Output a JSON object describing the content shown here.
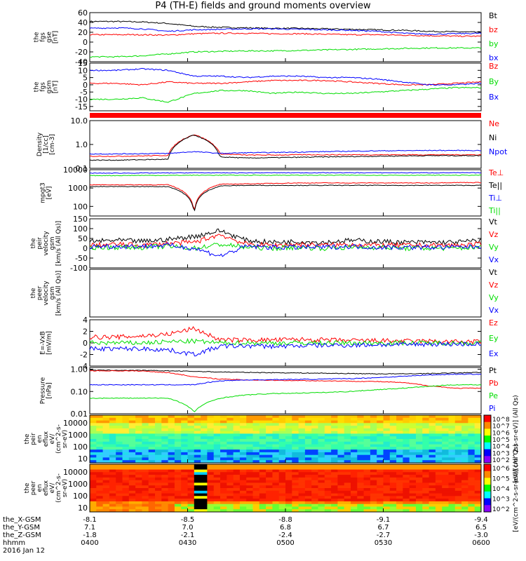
{
  "title": "P4 (TH-E) fields and ground moments overview",
  "colors": {
    "black": "#000000",
    "red": "#ff0000",
    "green": "#00dd00",
    "blue": "#0000ff"
  },
  "chart_data": [
    {
      "type": "line",
      "panel": "fgs_gse",
      "ylabel": [
        "the",
        "fgs",
        "gse",
        "[nT]"
      ],
      "ylim": [
        -40,
        60
      ],
      "yticks": [
        60,
        40,
        20,
        0,
        -20,
        -40
      ],
      "series": [
        {
          "name": "Bt",
          "color": "#000000",
          "values": [
            42,
            42,
            41,
            38,
            32,
            30,
            29,
            28,
            28,
            27,
            26,
            25,
            24,
            22,
            21,
            20
          ]
        },
        {
          "name": "bz",
          "color": "#ff0000",
          "values": [
            15,
            15,
            15,
            14,
            17,
            18,
            18,
            17,
            17,
            16,
            15,
            15,
            14,
            13,
            12,
            12
          ]
        },
        {
          "name": "by",
          "color": "#00dd00",
          "values": [
            -30,
            -30,
            -28,
            -24,
            -20,
            -19,
            -18,
            -18,
            -17,
            -16,
            -15,
            -14,
            -13,
            -12,
            -12,
            -12
          ]
        },
        {
          "name": "bx",
          "color": "#0000ff",
          "values": [
            28,
            29,
            27,
            22,
            25,
            26,
            27,
            27,
            26,
            25,
            24,
            22,
            18,
            16,
            17,
            18
          ]
        }
      ]
    },
    {
      "type": "line",
      "panel": "fgs_gsm",
      "ylabel": [
        "the",
        "fgs",
        "gsm",
        "[nT]"
      ],
      "ylim": [
        -18,
        15
      ],
      "yticks": [
        15,
        10,
        5,
        0,
        -5,
        -10,
        -15
      ],
      "series": [
        {
          "name": "Bz",
          "color": "#ff0000",
          "values": [
            1,
            1,
            0,
            2,
            1,
            1,
            2,
            3,
            3,
            3,
            2,
            1,
            0,
            0,
            1,
            2
          ]
        },
        {
          "name": "By",
          "color": "#00dd00",
          "values": [
            -10,
            -10,
            -9,
            -12,
            -6,
            -4,
            -4,
            -6,
            -5,
            -6,
            -6,
            -5,
            -4,
            -3,
            -2,
            -2
          ]
        },
        {
          "name": "Bx",
          "color": "#0000ff",
          "values": [
            10,
            10,
            11,
            10,
            6,
            6,
            5,
            6,
            6,
            5,
            5,
            4,
            2,
            0,
            0,
            1
          ]
        }
      ]
    },
    {
      "type": "line",
      "panel": "density",
      "log": true,
      "ylabel": [
        "Density",
        "[1/cc]",
        "[cm-3]"
      ],
      "ylim": [
        0.1,
        10
      ],
      "yticks": [
        10.0,
        1.0,
        0.1
      ],
      "ticklabels": [
        "10.0",
        "1.0",
        "0.1"
      ],
      "series": [
        {
          "name": "Ne",
          "color": "#ff0000",
          "values": [
            0.32,
            0.32,
            0.33,
            0.35,
            2.6,
            0.4,
            0.36,
            0.36,
            0.37,
            0.37,
            0.37,
            0.37,
            0.37,
            0.37,
            0.37,
            0.37
          ]
        },
        {
          "name": "Ni",
          "color": "#000000",
          "values": [
            0.22,
            0.22,
            0.23,
            0.24,
            2.5,
            0.3,
            0.27,
            0.28,
            0.29,
            0.3,
            0.31,
            0.32,
            0.33,
            0.34,
            0.34,
            0.34
          ]
        },
        {
          "name": "Npot",
          "color": "#0000ff",
          "values": [
            0.4,
            0.4,
            0.41,
            0.42,
            0.5,
            0.42,
            0.45,
            0.46,
            0.48,
            0.5,
            0.52,
            0.54,
            0.55,
            0.56,
            0.56,
            0.56
          ]
        }
      ]
    },
    {
      "type": "line",
      "panel": "temperature",
      "log": true,
      "ylabel": [
        "mpgt3",
        "[eV]"
      ],
      "ylim": [
        30,
        10000
      ],
      "yticks": [
        10000,
        1000,
        100
      ],
      "ticklabels": [
        "10000",
        "1000",
        "100"
      ],
      "series": [
        {
          "name": "Te⊥",
          "color": "#ff0000",
          "values": [
            1500,
            1500,
            1500,
            1500,
            45,
            1600,
            1700,
            1800,
            1900,
            1900,
            1900,
            1900,
            1900,
            1900,
            2000,
            2000
          ]
        },
        {
          "name": "Te||",
          "color": "#000000",
          "values": [
            1200,
            1200,
            1200,
            1200,
            40,
            1300,
            1400,
            1400,
            1400,
            1400,
            1400,
            1400,
            1400,
            1400,
            1400,
            1400
          ]
        },
        {
          "name": "Ti⊥",
          "color": "#0000ff",
          "values": [
            6500,
            6500,
            6600,
            6600,
            6800,
            6700,
            6700,
            6800,
            6800,
            6800,
            6800,
            6800,
            6800,
            6800,
            6800,
            6800
          ]
        },
        {
          "name": "Ti||",
          "color": "#00dd00",
          "values": [
            4800,
            4800,
            4900,
            4900,
            5000,
            5000,
            5000,
            5000,
            5000,
            5000,
            5000,
            5000,
            5000,
            5000,
            5000,
            5000
          ]
        }
      ]
    },
    {
      "type": "line",
      "panel": "peir_velocity",
      "ylabel": [
        "the",
        "peir",
        "velocity",
        "gsm",
        "[km/s (All Qs)]"
      ],
      "ylim": [
        -100,
        150
      ],
      "yticks": [
        150,
        100,
        50,
        0,
        -50,
        -100
      ],
      "series": [
        {
          "name": "Vt",
          "color": "#000000",
          "values": [
            35,
            40,
            35,
            45,
            60,
            90,
            40,
            30,
            35,
            30,
            40,
            35,
            30,
            30,
            30,
            40
          ]
        },
        {
          "name": "Vz",
          "color": "#ff0000",
          "values": [
            15,
            20,
            15,
            25,
            30,
            70,
            20,
            15,
            20,
            15,
            20,
            15,
            15,
            15,
            15,
            20
          ]
        },
        {
          "name": "Vy",
          "color": "#00dd00",
          "values": [
            5,
            5,
            5,
            10,
            0,
            20,
            5,
            0,
            5,
            0,
            5,
            5,
            0,
            0,
            0,
            5
          ]
        },
        {
          "name": "Vx",
          "color": "#0000ff",
          "values": [
            10,
            10,
            10,
            15,
            0,
            -40,
            10,
            5,
            5,
            5,
            10,
            5,
            5,
            5,
            5,
            10
          ]
        }
      ]
    },
    {
      "type": "line",
      "panel": "peer_velocity",
      "ylabel": [
        "the",
        "peer",
        "velocity",
        "gsm",
        "[km/s (All Qs)]"
      ],
      "ylim": [
        -100,
        150
      ],
      "yticks": [],
      "series": [
        {
          "name": "Vt",
          "color": "#000000",
          "values": []
        },
        {
          "name": "Vz",
          "color": "#ff0000",
          "values": []
        },
        {
          "name": "Vy",
          "color": "#00dd00",
          "values": []
        },
        {
          "name": "Vx",
          "color": "#0000ff",
          "values": []
        }
      ]
    },
    {
      "type": "line",
      "panel": "efield",
      "ylabel": [
        "E=-VxB",
        "[mV/m]"
      ],
      "ylim": [
        -4,
        4
      ],
      "yticks": [
        4,
        2,
        0,
        -2,
        -4
      ],
      "ticklabels": [
        "4",
        "2",
        "0",
        "-2",
        "-4"
      ],
      "series": [
        {
          "name": "Ez",
          "color": "#ff0000",
          "values": [
            1,
            1,
            1.2,
            1.5,
            2.5,
            0.5,
            0.5,
            0.5,
            0.6,
            0.5,
            0.4,
            0.4,
            0.3,
            0.3,
            0.2,
            0.2
          ]
        },
        {
          "name": "Ey",
          "color": "#00dd00",
          "values": [
            0,
            0,
            0,
            0.2,
            0.3,
            0,
            0,
            0,
            0,
            0,
            0,
            0,
            0,
            0,
            0,
            0
          ]
        },
        {
          "name": "Ex",
          "color": "#0000ff",
          "values": [
            -1,
            -1,
            -1,
            -1.2,
            -2,
            -0.6,
            -0.5,
            -0.6,
            -0.5,
            -0.4,
            -0.4,
            -0.3,
            -0.3,
            -0.2,
            -0.2,
            -0.2
          ]
        }
      ]
    },
    {
      "type": "line",
      "panel": "pressure",
      "log": true,
      "ylabel": [
        "Pressure",
        "[nPa]"
      ],
      "ylim": [
        0.01,
        1.2
      ],
      "yticks": [
        1.0,
        0.1,
        0.01
      ],
      "ticklabels": [
        "1.00",
        "0.10",
        "0.01"
      ],
      "series": [
        {
          "name": "Pt",
          "color": "#000000",
          "values": [
            0.9,
            0.9,
            0.88,
            0.85,
            0.8,
            0.75,
            0.72,
            0.7,
            0.68,
            0.66,
            0.64,
            0.62,
            0.62,
            0.64,
            0.68,
            0.72
          ]
        },
        {
          "name": "Pb",
          "color": "#ff0000",
          "values": [
            0.85,
            0.85,
            0.83,
            0.7,
            0.45,
            0.36,
            0.33,
            0.32,
            0.31,
            0.3,
            0.29,
            0.28,
            0.25,
            0.18,
            0.14,
            0.14
          ]
        },
        {
          "name": "Pe",
          "color": "#00dd00",
          "values": [
            0.05,
            0.05,
            0.05,
            0.05,
            0.012,
            0.05,
            0.07,
            0.08,
            0.085,
            0.09,
            0.1,
            0.12,
            0.14,
            0.17,
            0.2,
            0.2
          ]
        },
        {
          "name": "Pi",
          "color": "#0000ff",
          "values": [
            0.2,
            0.2,
            0.2,
            0.2,
            0.2,
            0.3,
            0.33,
            0.34,
            0.35,
            0.36,
            0.38,
            0.42,
            0.48,
            0.55,
            0.6,
            0.6
          ]
        }
      ]
    },
    {
      "type": "heatmap",
      "panel": "peir_eflux",
      "ylabel": [
        "the",
        "peir",
        "en",
        "eflux",
        "eV/",
        "(cm^2-s-",
        "sr-eV)"
      ],
      "yticks": [
        10000,
        1000,
        100,
        10
      ],
      "ticklabels": [
        "10000",
        "1000",
        "100",
        "10"
      ],
      "colorbar": {
        "label": "[eV/(cm^2-s-sr-eV)] (All Qs)",
        "ticks": [
          "10^8",
          "10^7",
          "10^6",
          "10^5",
          "10^4",
          "10^3",
          "10^2"
        ]
      }
    },
    {
      "type": "heatmap",
      "panel": "peer_eflux",
      "ylabel": [
        "the",
        "peer",
        "en",
        "eflux",
        "eV/",
        "(cm^2-s-",
        "sr-eV)"
      ],
      "yticks": [
        10000,
        1000,
        100,
        10
      ],
      "ticklabels": [
        "10000",
        "1000",
        "100",
        "10"
      ],
      "colorbar": {
        "label": "[eV/(cm^2-s-sr-eV)] (All Qs)",
        "ticks": [
          "10^6",
          "10^5",
          "10^4",
          "10^3",
          "10^2"
        ]
      }
    }
  ],
  "legends": [
    [
      "Bt",
      "bz",
      "by",
      "bx"
    ],
    [
      "Bz",
      "By",
      "Bx"
    ],
    [
      "Ne",
      "Ni",
      "Npot"
    ],
    [
      "Te⊥",
      "Te||",
      "Ti⊥",
      "Ti||"
    ],
    [
      "Vt",
      "Vz",
      "Vy",
      "Vx"
    ],
    [
      "Vt",
      "Vz",
      "Vy",
      "Vx"
    ],
    [
      "Ez",
      "Ey",
      "Ex"
    ],
    [
      "Pt",
      "Pb",
      "Pe",
      "Pi"
    ]
  ],
  "xaxis": {
    "rows": [
      {
        "label": "the_X-GSM",
        "values": [
          "-8.1",
          "-8.5",
          "-8.8",
          "-9.1",
          "-9.4"
        ]
      },
      {
        "label": "the_Y-GSM",
        "values": [
          "7.1",
          "7.0",
          "6.8",
          "6.7",
          "6.5"
        ]
      },
      {
        "label": "the_Z-GSM",
        "values": [
          "-1.8",
          "-2.1",
          "-2.4",
          "-2.7",
          "-3.0"
        ]
      },
      {
        "label": "hhmm",
        "values": [
          "0400",
          "0430",
          "0500",
          "0530",
          "0600"
        ]
      }
    ],
    "date": "2016 Jan 12"
  }
}
